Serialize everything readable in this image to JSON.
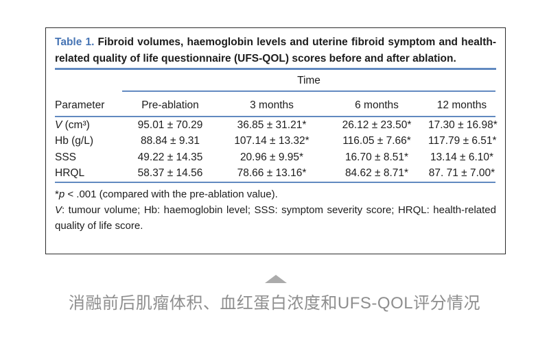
{
  "table": {
    "label": "Table 1.",
    "title": "Fibroid volumes, haemoglobin levels and uterine fibroid symptom and health-related quality of life questionnaire (UFS-QOL) scores before and after ablation.",
    "span_header": "Time",
    "columns": [
      "Parameter",
      "Pre-ablation",
      "3 months",
      "6 months",
      "12 months"
    ],
    "rows": [
      {
        "param_italic": "V",
        "param_rest": " (cm³)",
        "values": [
          "95.01 ± 70.29",
          "36.85 ± 31.21*",
          "26.12 ± 23.50*",
          "17.30 ± 16.98*"
        ]
      },
      {
        "param_italic": "",
        "param_rest": "Hb (g/L)",
        "values": [
          "88.84 ± 9.31",
          "107.14 ± 13.32*",
          "116.05 ± 7.66*",
          "117.79 ± 6.51*"
        ]
      },
      {
        "param_italic": "",
        "param_rest": "SSS",
        "values": [
          "49.22 ± 14.35",
          "20.96 ± 9.95*",
          "16.70 ± 8.51*",
          "13.14 ± 6.10*"
        ]
      },
      {
        "param_italic": "",
        "param_rest": "HRQL",
        "values": [
          "58.37 ± 14.56",
          "78.66 ± 13.16*",
          "84.62 ± 8.71*",
          "87. 71 ± 7.00*"
        ]
      }
    ],
    "footnote_sig": {
      "star": "*",
      "p": "p",
      "rest": " < .001 (compared with the pre-ablation value)."
    },
    "footnote_abbrev": {
      "v": "V",
      "rest": ": tumour volume; Hb: haemoglobin level; SSS: symptom severity score; HRQL: health-related quality of life score."
    },
    "colors": {
      "accent_blue": "#4674b4",
      "rule_blue": "#6189c0",
      "caption_gray": "#8e8e8e"
    }
  },
  "figure": {
    "pointer_icon": "triangle-up",
    "caption_cn": "消融前后肌瘤体积、血红蛋白浓度和UFS-QOL评分情况"
  }
}
